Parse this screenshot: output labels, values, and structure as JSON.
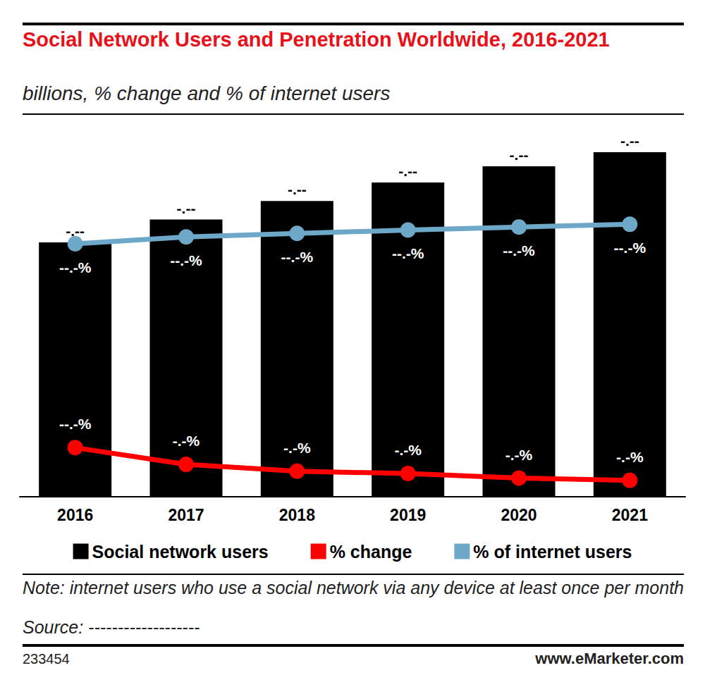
{
  "chart_data": {
    "type": "bar",
    "title": "Social Network Users and Penetration Worldwide, 2016-2021",
    "subtitle": "billions, % change and % of internet users",
    "categories": [
      "2016",
      "2017",
      "2018",
      "2019",
      "2020",
      "2021"
    ],
    "series": [
      {
        "name": "Social network users",
        "type": "bar",
        "color": "#000000",
        "values": [
          2.34,
          2.55,
          2.72,
          2.89,
          3.04,
          3.17
        ],
        "value_labels": [
          "-.--",
          "-.--",
          "-.--",
          "-.--",
          "-.--",
          "-.--"
        ]
      },
      {
        "name": "% change",
        "type": "line",
        "axis": "y2",
        "color": "#ff0000",
        "marker": "circle",
        "values": [
          12.9,
          8.5,
          6.7,
          6.1,
          4.9,
          4.3
        ],
        "value_labels": [
          "--.-%",
          "-.-%",
          "-.-%",
          "-.-%",
          "-.-%",
          "-.-%"
        ]
      },
      {
        "name": "% of internet users",
        "type": "line",
        "axis": "y2",
        "color": "#6ea8c8",
        "marker": "circle",
        "values": [
          66.5,
          68.3,
          69.2,
          70.1,
          70.9,
          71.6
        ],
        "value_labels": [
          "--.-%",
          "--.-%",
          "--.-%",
          "--.-%",
          "--.-%",
          "--.-%"
        ]
      }
    ],
    "ylim": [
      0,
      3.5
    ],
    "y2lim": [
      0,
      100
    ],
    "grid": false,
    "tick_labels": "x",
    "data_labels": true,
    "legend": "bottom",
    "note": "Note: internet users who use a social network via any device at least once per month",
    "source": "Source: -------------------",
    "id": "233454",
    "footer": "www.eMarketer.com"
  }
}
